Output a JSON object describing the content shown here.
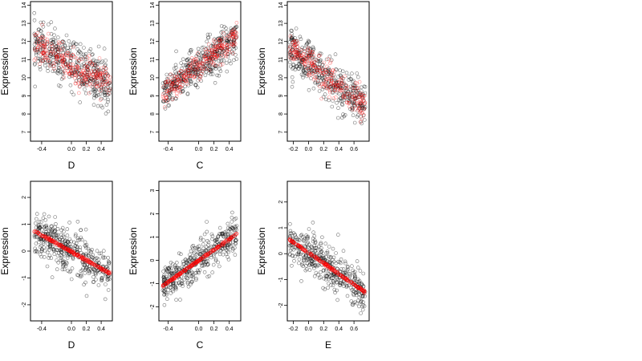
{
  "chart_data": [
    {
      "type": "scatter",
      "xlabel": "D",
      "ylabel": "Expression",
      "xlim": [
        -0.55,
        0.55
      ],
      "ylim": [
        6.5,
        14.2
      ],
      "xticks": [
        -0.4,
        0.0,
        0.2,
        0.4
      ],
      "xtick_labels": [
        "-0.4",
        "0.0",
        "0.2",
        "0.4"
      ],
      "yticks": [
        7,
        8,
        9,
        10,
        11,
        12,
        13,
        14
      ],
      "ytick_labels": [
        "7",
        "8",
        "9",
        "10",
        "11",
        "12",
        "13",
        "14"
      ],
      "grid": false,
      "series": [
        {
          "color": "#000000",
          "marker": "open-circle",
          "x_range": [
            -0.5,
            0.52
          ],
          "trend": [
            [
              -0.5,
              11.8
            ],
            [
              0.0,
              10.8
            ],
            [
              0.5,
              9.6
            ]
          ],
          "spread": 1.3
        },
        {
          "color": "#ff0000",
          "marker": "open-circle",
          "x_range": [
            -0.5,
            0.52
          ],
          "trend": [
            [
              -0.5,
              11.8
            ],
            [
              0.0,
              10.6
            ],
            [
              0.5,
              9.8
            ]
          ],
          "spread": 0.9
        }
      ]
    },
    {
      "type": "scatter",
      "xlabel": "C",
      "ylabel": "Expression",
      "xlim": [
        -0.52,
        0.55
      ],
      "ylim": [
        6.5,
        14.2
      ],
      "xticks": [
        -0.4,
        0.0,
        0.2,
        0.4
      ],
      "xtick_labels": [
        "-0.4",
        "0.0",
        "0.2",
        "0.4"
      ],
      "yticks": [
        7,
        8,
        9,
        10,
        11,
        12,
        13,
        14
      ],
      "ytick_labels": [
        "7",
        "8",
        "9",
        "10",
        "11",
        "12",
        "13",
        "14"
      ],
      "grid": false,
      "series": [
        {
          "color": "#000000",
          "marker": "open-circle",
          "x_range": [
            -0.47,
            0.5
          ],
          "trend": [
            [
              -0.47,
              9.2
            ],
            [
              0.0,
              10.6
            ],
            [
              0.5,
              12.2
            ]
          ],
          "spread": 1.1
        },
        {
          "color": "#ff0000",
          "marker": "open-circle",
          "x_range": [
            -0.47,
            0.5
          ],
          "trend": [
            [
              -0.47,
              9.1
            ],
            [
              0.0,
              10.6
            ],
            [
              0.5,
              12.3
            ]
          ],
          "spread": 0.7
        }
      ]
    },
    {
      "type": "scatter",
      "xlabel": "E",
      "ylabel": "Expression",
      "xlim": [
        -0.28,
        0.8
      ],
      "ylim": [
        6.5,
        14.2
      ],
      "xticks": [
        -0.2,
        0.0,
        0.2,
        0.4,
        0.6
      ],
      "xtick_labels": [
        "-0.2",
        "0.0",
        "0.2",
        "0.4",
        "0.6"
      ],
      "yticks": [
        7,
        8,
        9,
        10,
        11,
        12,
        13,
        14
      ],
      "ytick_labels": [
        "7",
        "8",
        "9",
        "10",
        "11",
        "12",
        "13",
        "14"
      ],
      "grid": false,
      "series": [
        {
          "color": "#000000",
          "marker": "open-circle",
          "x_range": [
            -0.25,
            0.75
          ],
          "trend": [
            [
              -0.25,
              11.6
            ],
            [
              0.2,
              10.2
            ],
            [
              0.75,
              8.3
            ]
          ],
          "spread": 1.2
        },
        {
          "color": "#ff0000",
          "marker": "open-circle",
          "x_range": [
            -0.25,
            0.75
          ],
          "trend": [
            [
              -0.25,
              11.7
            ],
            [
              0.2,
              10.1
            ],
            [
              0.75,
              8.4
            ]
          ],
          "spread": 0.9
        }
      ]
    },
    {
      "type": "scatter",
      "xlabel": "D",
      "ylabel": "Expression",
      "xlim": [
        -0.55,
        0.55
      ],
      "ylim": [
        -2.6,
        2.6
      ],
      "xticks": [
        -0.4,
        0.0,
        0.2,
        0.4
      ],
      "xtick_labels": [
        "-0.4",
        "0.0",
        "0.2",
        "0.4"
      ],
      "yticks": [
        -2,
        -1,
        0,
        1,
        2
      ],
      "ytick_labels": [
        "-2",
        "-1",
        "0",
        "1",
        "2"
      ],
      "grid": false,
      "series": [
        {
          "color": "#000000",
          "marker": "open-circle",
          "x_range": [
            -0.5,
            0.52
          ],
          "trend": [
            [
              -0.5,
              0.75
            ],
            [
              0.5,
              -0.8
            ]
          ],
          "spread": 0.8
        },
        {
          "color": "#ff0000",
          "marker": "open-circle",
          "x_range": [
            -0.5,
            0.52
          ],
          "trend": [
            [
              -0.5,
              0.75
            ],
            [
              0.5,
              -0.8
            ]
          ],
          "spread": 0.05
        }
      ]
    },
    {
      "type": "scatter",
      "xlabel": "C",
      "ylabel": "Expression",
      "xlim": [
        -0.52,
        0.55
      ],
      "ylim": [
        -2.6,
        3.4
      ],
      "xticks": [
        -0.4,
        0.0,
        0.2,
        0.4
      ],
      "xtick_labels": [
        "-0.4",
        "0.0",
        "0.2",
        "0.4"
      ],
      "yticks": [
        -2,
        -1,
        0,
        1,
        2,
        3
      ],
      "ytick_labels": [
        "-2",
        "-1",
        "0",
        "1",
        "2",
        "3"
      ],
      "grid": false,
      "series": [
        {
          "color": "#000000",
          "marker": "open-circle",
          "x_range": [
            -0.47,
            0.5
          ],
          "trend": [
            [
              -0.47,
              -1.1
            ],
            [
              0.5,
              1.15
            ]
          ],
          "spread": 0.8
        },
        {
          "color": "#ff0000",
          "marker": "open-circle",
          "x_range": [
            -0.47,
            0.5
          ],
          "trend": [
            [
              -0.47,
              -1.1
            ],
            [
              0.5,
              1.15
            ]
          ],
          "spread": 0.05
        }
      ]
    },
    {
      "type": "scatter",
      "xlabel": "E",
      "ylabel": "Expression",
      "xlim": [
        -0.28,
        0.8
      ],
      "ylim": [
        -2.6,
        2.8
      ],
      "xticks": [
        -0.2,
        0.0,
        0.2,
        0.4,
        0.6
      ],
      "xtick_labels": [
        "-0.2",
        "0.0",
        "0.2",
        "0.4",
        "0.6"
      ],
      "yticks": [
        -2,
        -1,
        0,
        1,
        2
      ],
      "ytick_labels": [
        "-2",
        "-1",
        "0",
        "1",
        "2"
      ],
      "grid": false,
      "series": [
        {
          "color": "#000000",
          "marker": "open-circle",
          "x_range": [
            -0.25,
            0.75
          ],
          "trend": [
            [
              -0.25,
              0.5
            ],
            [
              0.75,
              -1.5
            ]
          ],
          "spread": 0.8
        },
        {
          "color": "#ff0000",
          "marker": "open-circle",
          "x_range": [
            -0.25,
            0.75
          ],
          "trend": [
            [
              -0.25,
              0.55
            ],
            [
              0.75,
              -1.5
            ]
          ],
          "spread": 0.05
        }
      ]
    }
  ]
}
